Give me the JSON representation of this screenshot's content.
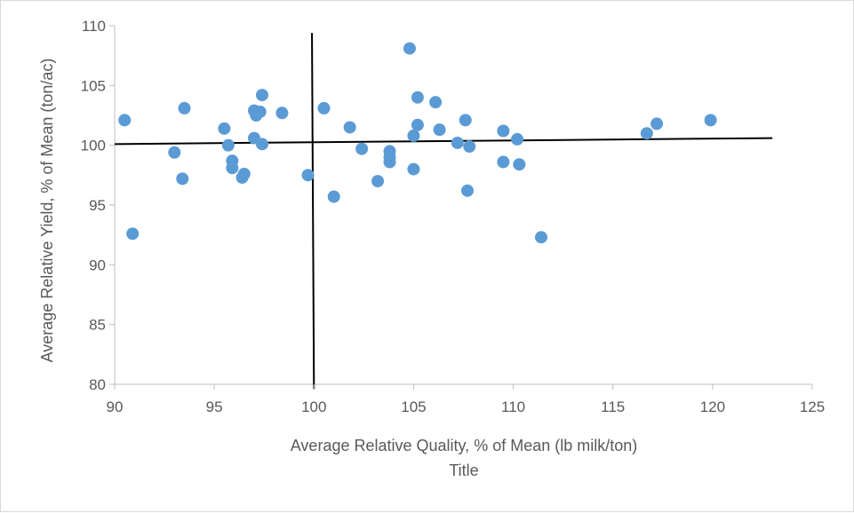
{
  "chart_data": {
    "type": "scatter",
    "xlabel": "Average Relative Quality, % of Mean (lb milk/ton)",
    "xlabel2": "Title",
    "ylabel": "Average Relative Yield, % of Mean (ton/ac)",
    "xlim": [
      90,
      125
    ],
    "ylim": [
      80,
      110
    ],
    "xticks": [
      90,
      95,
      100,
      105,
      110,
      115,
      120,
      125
    ],
    "yticks": [
      80,
      85,
      90,
      95,
      100,
      105,
      110
    ],
    "grid": false,
    "marker_color": "#5b9bd5",
    "line_color": "#000000",
    "series": [
      {
        "x": [
          90.5,
          90.9,
          93.0,
          93.4,
          93.5,
          95.5,
          95.7,
          95.9,
          95.9,
          96.4,
          96.5,
          97.0,
          97.0,
          97.1,
          97.3,
          97.4,
          97.4,
          98.4,
          99.7,
          100.5,
          101.0,
          101.8,
          102.4,
          103.2,
          103.8,
          103.8,
          103.8,
          104.8,
          105.0,
          105.0,
          105.2,
          105.2,
          106.1,
          106.3,
          107.2,
          107.6,
          107.7,
          107.8,
          109.5,
          109.5,
          110.2,
          110.3,
          111.4,
          116.7,
          117.2,
          119.9
        ],
        "y": [
          102.1,
          92.6,
          99.4,
          97.2,
          103.1,
          101.4,
          100.0,
          98.7,
          98.1,
          97.3,
          97.6,
          102.9,
          100.6,
          102.5,
          102.8,
          104.2,
          100.1,
          102.7,
          97.5,
          103.1,
          95.7,
          101.5,
          99.7,
          97.0,
          99.5,
          99.0,
          98.6,
          108.1,
          100.8,
          98.0,
          104.0,
          101.7,
          103.6,
          101.3,
          100.2,
          102.1,
          96.2,
          99.9,
          101.2,
          98.6,
          100.5,
          98.4,
          92.3,
          101.0,
          101.8,
          102.1
        ]
      }
    ],
    "reference_lines": [
      {
        "x": [
          90,
          123
        ],
        "y": [
          100.1,
          100.6
        ]
      },
      {
        "x": [
          99.9,
          100.0
        ],
        "y": [
          109.4,
          79.6
        ]
      }
    ]
  }
}
